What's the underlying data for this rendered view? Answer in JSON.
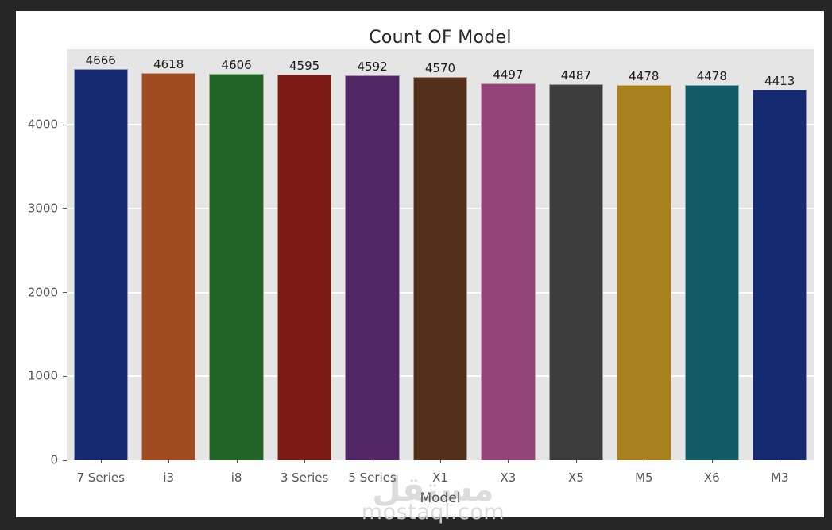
{
  "frame": {
    "background_color": "#262626",
    "figure_background_color": "#ffffff"
  },
  "chart_data": {
    "type": "bar",
    "title": "Count OF Model",
    "xlabel": "Model",
    "ylabel": "",
    "categories": [
      "7 Series",
      "i3",
      "i8",
      "3 Series",
      "5 Series",
      "X1",
      "X3",
      "X5",
      "M5",
      "X6",
      "M3"
    ],
    "values": [
      4666,
      4618,
      4606,
      4595,
      4592,
      4570,
      4497,
      4487,
      4478,
      4478,
      4413
    ],
    "bar_colors": [
      "#152a70",
      "#a04a21",
      "#216426",
      "#7c1a13",
      "#532765",
      "#523019",
      "#93457a",
      "#3c3c3c",
      "#a8811f",
      "#115a66",
      "#152a70"
    ],
    "value_labels": [
      4666,
      4618,
      4606,
      4595,
      4592,
      4570,
      4497,
      4487,
      4478,
      4478,
      4413
    ],
    "yticks": [
      0,
      1000,
      2000,
      3000,
      4000
    ],
    "ylim": [
      0,
      4900
    ],
    "bar_width_ratio": 0.8,
    "grid": "horizontal white gridlines",
    "plot_background_color": "#e5e5e5",
    "grid_color": "#ffffff",
    "tick_color": "#555555",
    "title_color": "#262626",
    "legend_position": "none"
  },
  "watermark": {
    "arabic_text": "مستقل",
    "domain_text": "mostaql.com"
  }
}
